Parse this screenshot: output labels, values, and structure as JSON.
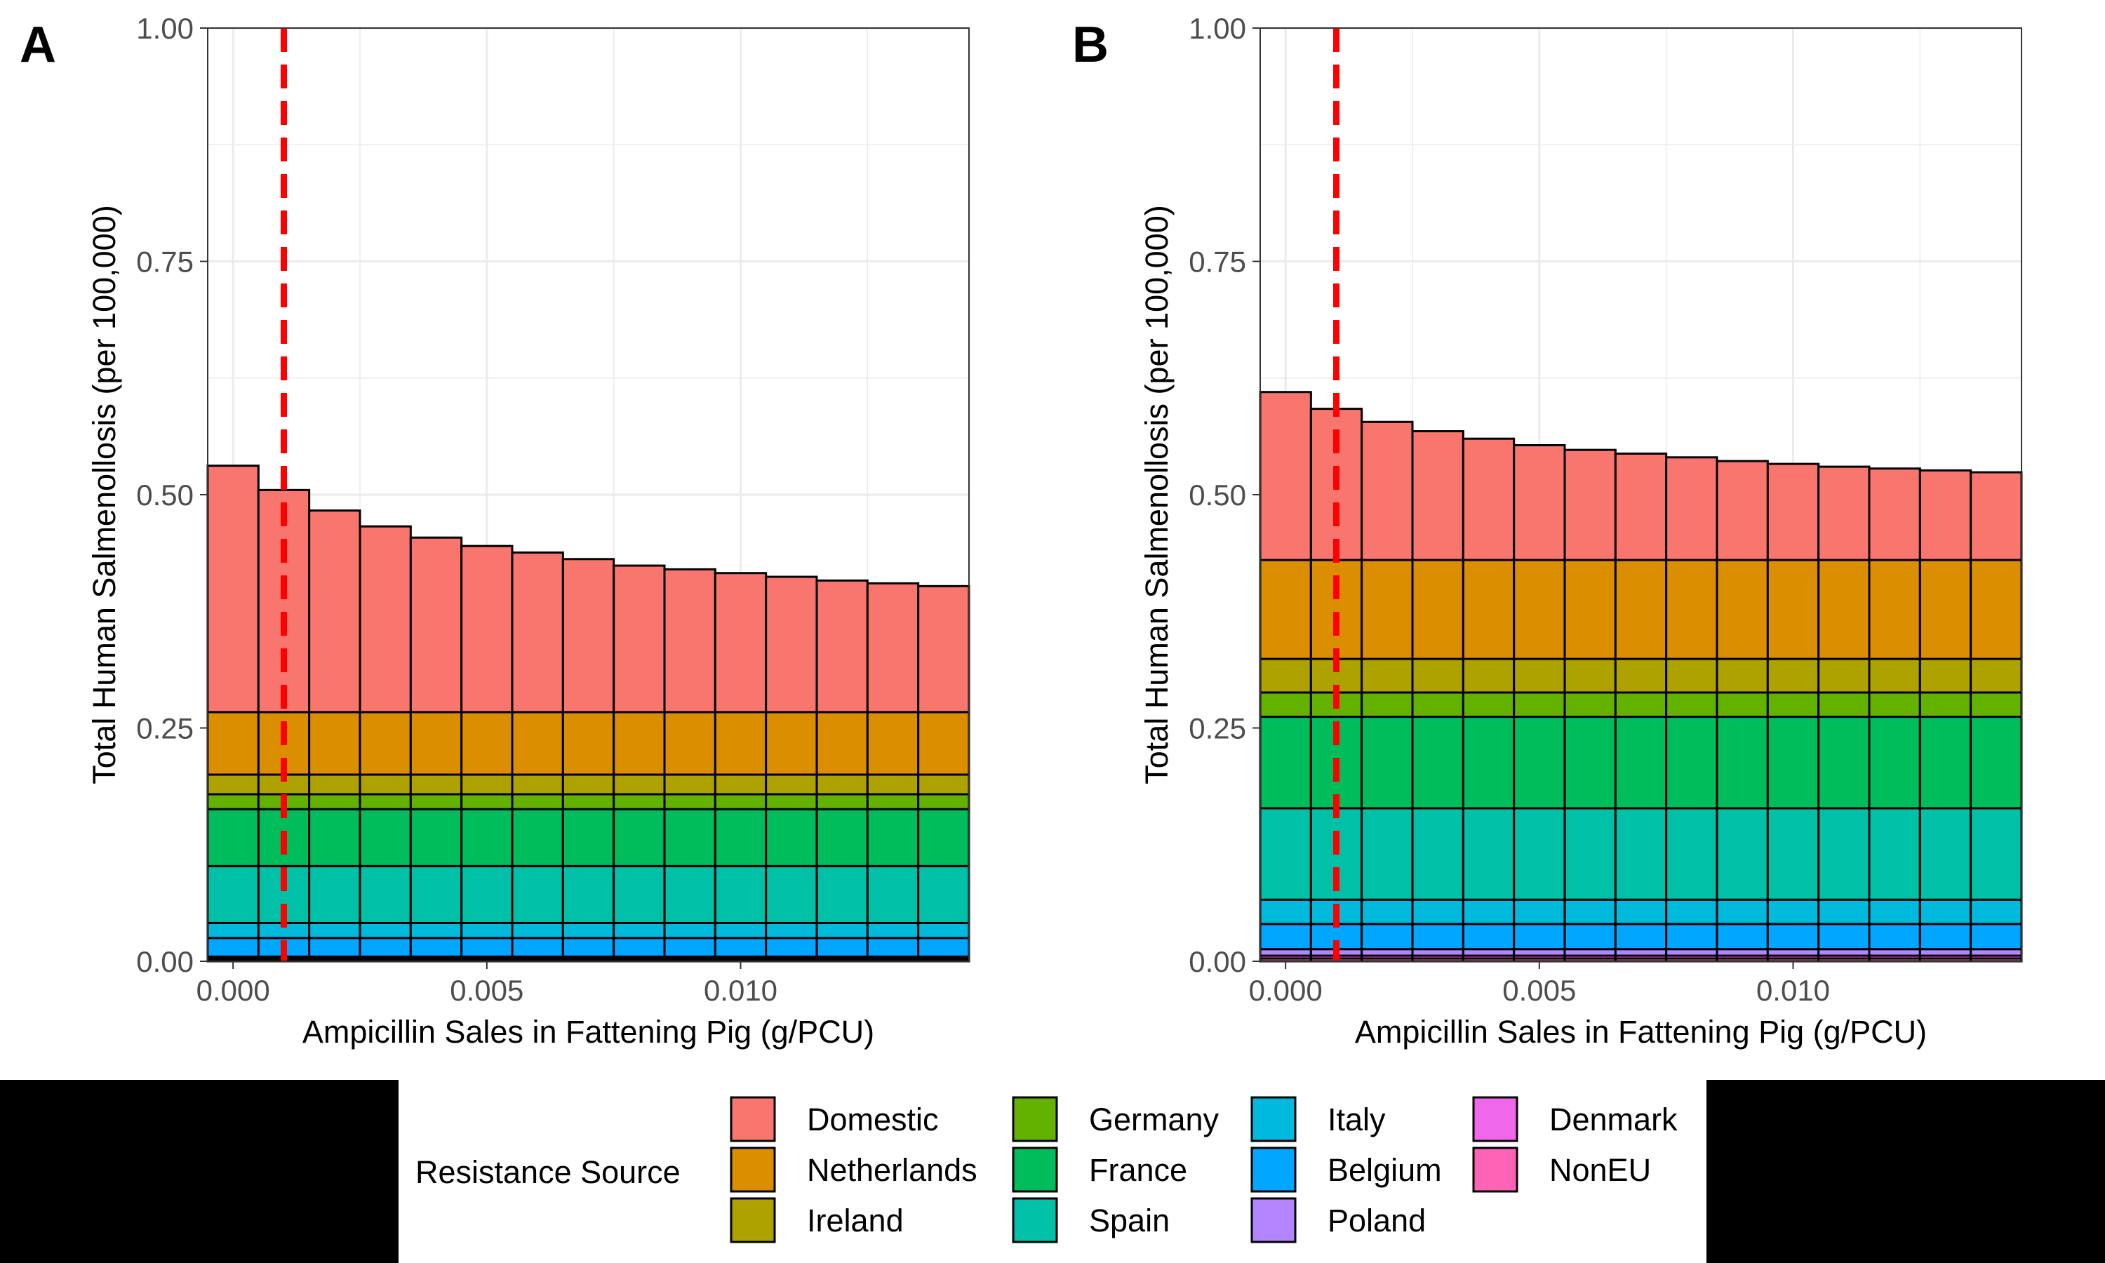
{
  "legend": {
    "title": "Resistance Source",
    "entries": [
      {
        "name": "Domestic",
        "color": "#F8766D"
      },
      {
        "name": "Netherlands",
        "color": "#DB8E00"
      },
      {
        "name": "Ireland",
        "color": "#AEA200"
      },
      {
        "name": "Germany",
        "color": "#64B200"
      },
      {
        "name": "France",
        "color": "#00BD5C"
      },
      {
        "name": "Spain",
        "color": "#00C1A7"
      },
      {
        "name": "Italy",
        "color": "#00BADE"
      },
      {
        "name": "Belgium",
        "color": "#00A6FF"
      },
      {
        "name": "Poland",
        "color": "#B385FF"
      },
      {
        "name": "Denmark",
        "color": "#EF67EB"
      },
      {
        "name": "NonEU",
        "color": "#FF63B6"
      }
    ]
  },
  "chart_data": [
    {
      "panel": "A",
      "type": "bar",
      "stacked": true,
      "xlabel": "Ampicillin Sales in Fattening Pig (g/PCU)",
      "ylabel": "Total Human Salmenollosis (per 100,000)",
      "x": [
        0.0,
        0.001,
        0.002,
        0.003,
        0.004,
        0.005,
        0.006,
        0.007,
        0.008,
        0.009,
        0.01,
        0.011,
        0.012,
        0.013,
        0.014
      ],
      "xlim": [
        -0.0005,
        0.0145
      ],
      "ylim": [
        0,
        1
      ],
      "xticks": [
        0.0,
        0.005,
        0.01
      ],
      "xtick_labels": [
        "0.000",
        "0.005",
        "0.010"
      ],
      "yticks": [
        0,
        0.25,
        0.5,
        0.75,
        1.0
      ],
      "ytick_labels": [
        "0.00",
        "0.25",
        "0.50",
        "0.75",
        "1.00"
      ],
      "reference_line": {
        "x": 0.001,
        "color": "#FF0000",
        "style": "dashed"
      },
      "series": [
        {
          "name": "NonEU",
          "values": [
            0.002,
            0.002,
            0.002,
            0.002,
            0.002,
            0.002,
            0.002,
            0.002,
            0.002,
            0.002,
            0.002,
            0.002,
            0.002,
            0.002,
            0.002
          ]
        },
        {
          "name": "Denmark",
          "values": [
            0.001,
            0.001,
            0.001,
            0.001,
            0.001,
            0.001,
            0.001,
            0.001,
            0.001,
            0.001,
            0.001,
            0.001,
            0.001,
            0.001,
            0.001
          ]
        },
        {
          "name": "Poland",
          "values": [
            0.002,
            0.002,
            0.002,
            0.002,
            0.002,
            0.002,
            0.002,
            0.002,
            0.002,
            0.002,
            0.002,
            0.002,
            0.002,
            0.002,
            0.002
          ]
        },
        {
          "name": "Belgium",
          "values": [
            0.02,
            0.02,
            0.02,
            0.02,
            0.02,
            0.02,
            0.02,
            0.02,
            0.02,
            0.02,
            0.02,
            0.02,
            0.02,
            0.02,
            0.02
          ]
        },
        {
          "name": "Italy",
          "values": [
            0.016,
            0.016,
            0.016,
            0.016,
            0.016,
            0.016,
            0.016,
            0.016,
            0.016,
            0.016,
            0.016,
            0.016,
            0.016,
            0.016,
            0.016
          ]
        },
        {
          "name": "Spain",
          "values": [
            0.061,
            0.061,
            0.061,
            0.061,
            0.061,
            0.061,
            0.061,
            0.061,
            0.061,
            0.061,
            0.061,
            0.061,
            0.061,
            0.061,
            0.061
          ]
        },
        {
          "name": "France",
          "values": [
            0.061,
            0.061,
            0.061,
            0.061,
            0.061,
            0.061,
            0.061,
            0.061,
            0.061,
            0.061,
            0.061,
            0.061,
            0.061,
            0.061,
            0.061
          ]
        },
        {
          "name": "Germany",
          "values": [
            0.016,
            0.016,
            0.016,
            0.016,
            0.016,
            0.016,
            0.016,
            0.016,
            0.016,
            0.016,
            0.016,
            0.016,
            0.016,
            0.016,
            0.016
          ]
        },
        {
          "name": "Ireland",
          "values": [
            0.021,
            0.021,
            0.021,
            0.021,
            0.021,
            0.021,
            0.021,
            0.021,
            0.021,
            0.021,
            0.021,
            0.021,
            0.021,
            0.021,
            0.021
          ]
        },
        {
          "name": "Netherlands",
          "values": [
            0.067,
            0.067,
            0.067,
            0.067,
            0.067,
            0.067,
            0.067,
            0.067,
            0.067,
            0.067,
            0.067,
            0.067,
            0.067,
            0.067,
            0.067
          ]
        },
        {
          "name": "Domestic",
          "values": [
            0.264,
            0.238,
            0.216,
            0.199,
            0.187,
            0.178,
            0.171,
            0.164,
            0.157,
            0.153,
            0.149,
            0.145,
            0.141,
            0.138,
            0.135
          ]
        }
      ]
    },
    {
      "panel": "B",
      "type": "bar",
      "stacked": true,
      "xlabel": "Ampicillin Sales in Fattening Pig (g/PCU)",
      "ylabel": "Total Human Salmenollosis (per 100,000)",
      "x": [
        0.0,
        0.001,
        0.002,
        0.003,
        0.004,
        0.005,
        0.006,
        0.007,
        0.008,
        0.009,
        0.01,
        0.011,
        0.012,
        0.013,
        0.014
      ],
      "xlim": [
        -0.0005,
        0.0145
      ],
      "ylim": [
        0,
        1
      ],
      "xticks": [
        0.0,
        0.005,
        0.01
      ],
      "xtick_labels": [
        "0.000",
        "0.005",
        "0.010"
      ],
      "yticks": [
        0,
        0.25,
        0.5,
        0.75,
        1.0
      ],
      "ytick_labels": [
        "0.00",
        "0.25",
        "0.50",
        "0.75",
        "1.00"
      ],
      "reference_line": {
        "x": 0.001,
        "color": "#FF0000",
        "style": "dashed"
      },
      "series": [
        {
          "name": "NonEU",
          "values": [
            0.003,
            0.003,
            0.003,
            0.003,
            0.003,
            0.003,
            0.003,
            0.003,
            0.003,
            0.003,
            0.003,
            0.003,
            0.003,
            0.003,
            0.003
          ]
        },
        {
          "name": "Denmark",
          "values": [
            0.003,
            0.003,
            0.003,
            0.003,
            0.003,
            0.003,
            0.003,
            0.003,
            0.003,
            0.003,
            0.003,
            0.003,
            0.003,
            0.003,
            0.003
          ]
        },
        {
          "name": "Poland",
          "values": [
            0.007,
            0.007,
            0.007,
            0.007,
            0.007,
            0.007,
            0.007,
            0.007,
            0.007,
            0.007,
            0.007,
            0.007,
            0.007,
            0.007,
            0.007
          ]
        },
        {
          "name": "Belgium",
          "values": [
            0.027,
            0.027,
            0.027,
            0.027,
            0.027,
            0.027,
            0.027,
            0.027,
            0.027,
            0.027,
            0.027,
            0.027,
            0.027,
            0.027,
            0.027
          ]
        },
        {
          "name": "Italy",
          "values": [
            0.026,
            0.026,
            0.026,
            0.026,
            0.026,
            0.026,
            0.026,
            0.026,
            0.026,
            0.026,
            0.026,
            0.026,
            0.026,
            0.026,
            0.026
          ]
        },
        {
          "name": "Spain",
          "values": [
            0.098,
            0.098,
            0.098,
            0.098,
            0.098,
            0.098,
            0.098,
            0.098,
            0.098,
            0.098,
            0.098,
            0.098,
            0.098,
            0.098,
            0.098
          ]
        },
        {
          "name": "France",
          "values": [
            0.098,
            0.098,
            0.098,
            0.098,
            0.098,
            0.098,
            0.098,
            0.098,
            0.098,
            0.098,
            0.098,
            0.098,
            0.098,
            0.098,
            0.098
          ]
        },
        {
          "name": "Germany",
          "values": [
            0.026,
            0.026,
            0.026,
            0.026,
            0.026,
            0.026,
            0.026,
            0.026,
            0.026,
            0.026,
            0.026,
            0.026,
            0.026,
            0.026,
            0.026
          ]
        },
        {
          "name": "Ireland",
          "values": [
            0.036,
            0.036,
            0.036,
            0.036,
            0.036,
            0.036,
            0.036,
            0.036,
            0.036,
            0.036,
            0.036,
            0.036,
            0.036,
            0.036,
            0.036
          ]
        },
        {
          "name": "Netherlands",
          "values": [
            0.106,
            0.106,
            0.106,
            0.106,
            0.106,
            0.106,
            0.106,
            0.106,
            0.106,
            0.106,
            0.106,
            0.106,
            0.106,
            0.106,
            0.106
          ]
        },
        {
          "name": "Domestic",
          "values": [
            0.18,
            0.162,
            0.148,
            0.138,
            0.13,
            0.123,
            0.118,
            0.114,
            0.11,
            0.106,
            0.103,
            0.1,
            0.098,
            0.096,
            0.094
          ]
        }
      ]
    }
  ]
}
